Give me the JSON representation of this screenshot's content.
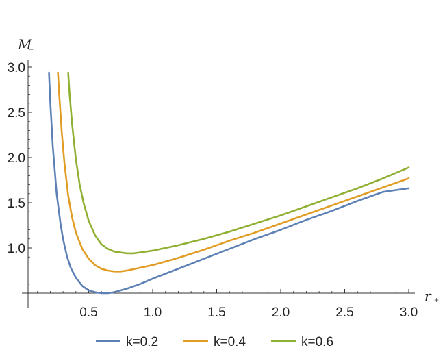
{
  "chart_data": {
    "type": "line",
    "title": "",
    "xlabel": "r",
    "xlabel_subscript": "+",
    "ylabel": "M",
    "ylabel_subscript": "+",
    "xlim": [
      0.0,
      3.05
    ],
    "ylim": [
      0.5,
      3.0
    ],
    "x_axis_crosses_y_at": 0.5,
    "x_ticks": [
      0.5,
      1.0,
      1.5,
      2.0,
      2.5,
      3.0
    ],
    "x_tick_labels": [
      "0.5",
      "1.0",
      "1.5",
      "2.0",
      "2.5",
      "3.0"
    ],
    "y_ticks": [
      1.0,
      1.5,
      2.0,
      2.5,
      3.0
    ],
    "y_tick_labels": [
      "1.0",
      "1.5",
      "2.0",
      "2.5",
      "3.0"
    ],
    "grid": false,
    "legend_position": "bottom",
    "series": [
      {
        "name": "k=0.2",
        "color": "#5E81B5",
        "x": [
          0.19,
          0.2,
          0.22,
          0.25,
          0.28,
          0.3,
          0.33,
          0.36,
          0.4,
          0.45,
          0.5,
          0.55,
          0.6,
          0.65,
          0.7,
          0.8,
          0.9,
          1.0,
          1.2,
          1.4,
          1.6,
          1.8,
          2.0,
          2.2,
          2.4,
          2.6,
          2.8,
          3.0
        ],
        "y": [
          2.94,
          2.62,
          2.12,
          1.6,
          1.27,
          1.1,
          0.91,
          0.78,
          0.67,
          0.58,
          0.53,
          0.51,
          0.5,
          0.5,
          0.51,
          0.55,
          0.6,
          0.66,
          0.77,
          0.88,
          0.99,
          1.1,
          1.2,
          1.31,
          1.41,
          1.52,
          1.62,
          1.66
        ]
      },
      {
        "name": "k=0.4",
        "color": "#E19C24",
        "x": [
          0.26,
          0.27,
          0.29,
          0.31,
          0.34,
          0.37,
          0.4,
          0.45,
          0.5,
          0.55,
          0.6,
          0.65,
          0.7,
          0.75,
          0.8,
          0.9,
          1.0,
          1.2,
          1.4,
          1.6,
          1.8,
          2.0,
          2.2,
          2.4,
          2.6,
          2.8,
          3.0
        ],
        "y": [
          2.94,
          2.7,
          2.28,
          1.95,
          1.58,
          1.34,
          1.17,
          0.99,
          0.88,
          0.81,
          0.77,
          0.75,
          0.74,
          0.74,
          0.75,
          0.78,
          0.81,
          0.89,
          0.98,
          1.08,
          1.17,
          1.27,
          1.37,
          1.47,
          1.57,
          1.67,
          1.77
        ]
      },
      {
        "name": "k=0.6",
        "color": "#8FB032",
        "x": [
          0.34,
          0.35,
          0.37,
          0.4,
          0.43,
          0.46,
          0.5,
          0.55,
          0.6,
          0.65,
          0.7,
          0.75,
          0.8,
          0.85,
          0.9,
          1.0,
          1.2,
          1.4,
          1.6,
          1.8,
          2.0,
          2.2,
          2.4,
          2.6,
          2.8,
          3.0
        ],
        "y": [
          2.94,
          2.72,
          2.38,
          1.98,
          1.7,
          1.5,
          1.3,
          1.14,
          1.04,
          0.99,
          0.96,
          0.95,
          0.94,
          0.94,
          0.95,
          0.97,
          1.03,
          1.1,
          1.18,
          1.27,
          1.36,
          1.46,
          1.56,
          1.66,
          1.77,
          1.89
        ]
      }
    ]
  }
}
